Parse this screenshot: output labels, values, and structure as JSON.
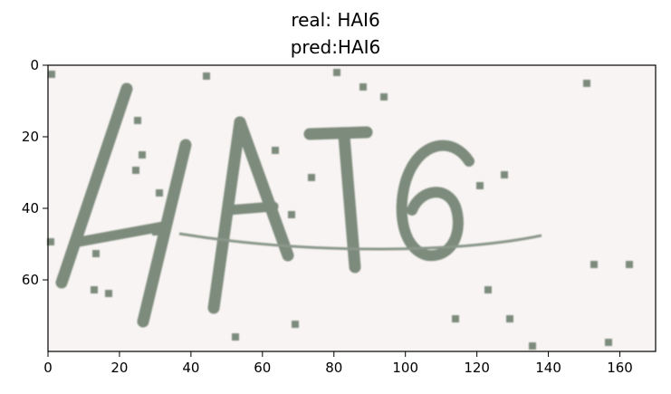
{
  "title_line1": "real: HAI6",
  "title_line2": "pred:HAI6",
  "chart_data": {
    "type": "image",
    "image_content": "CAPTCHA reading HAI6",
    "xlim": [
      0,
      170
    ],
    "ylim": [
      80,
      0
    ],
    "xticks": [
      0,
      20,
      40,
      60,
      80,
      100,
      120,
      140,
      160
    ],
    "yticks": [
      0,
      20,
      40,
      60
    ],
    "xlabel": "",
    "ylabel": "",
    "grid": false,
    "image_background": "#f8f4f3",
    "glyph_color": "#7d8b7c"
  }
}
